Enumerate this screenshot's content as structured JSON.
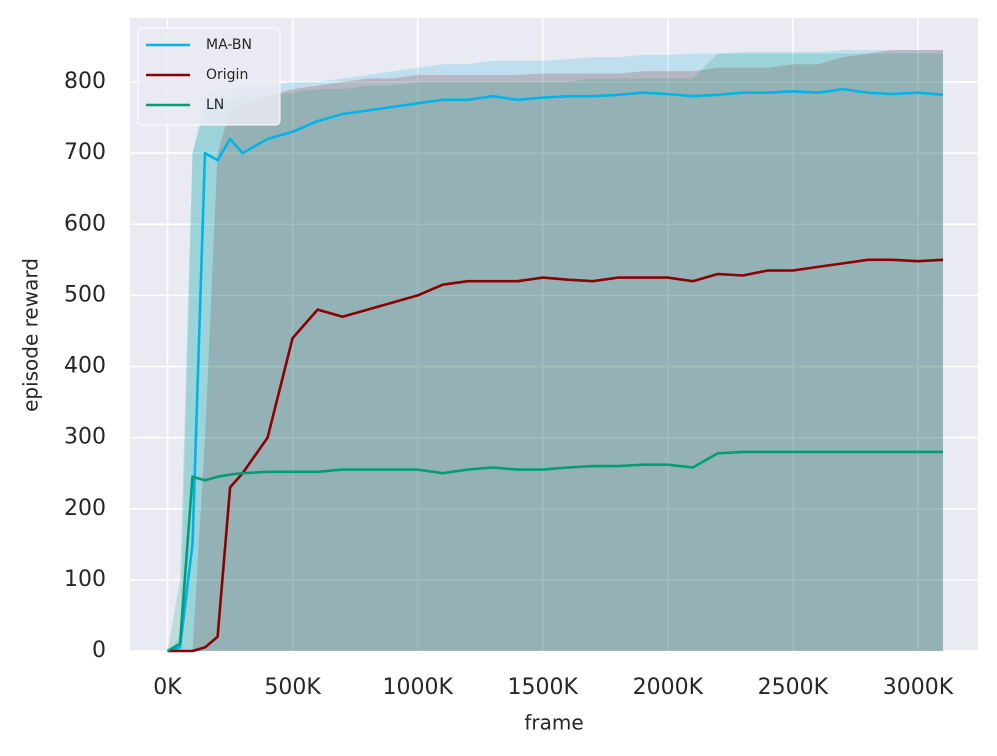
{
  "chart_data": {
    "type": "line",
    "x_label": "frame",
    "y_label": "episode reward",
    "xlim": [
      -150000,
      3240000
    ],
    "ylim": [
      0,
      890
    ],
    "xticks": [
      {
        "value": 0,
        "label": "0K"
      },
      {
        "value": 500000,
        "label": "500K"
      },
      {
        "value": 1000000,
        "label": "1000K"
      },
      {
        "value": 1500000,
        "label": "1500K"
      },
      {
        "value": 2000000,
        "label": "2000K"
      },
      {
        "value": 2500000,
        "label": "2500K"
      },
      {
        "value": 3000000,
        "label": "3000K"
      }
    ],
    "yticks": [
      0,
      100,
      200,
      300,
      400,
      500,
      600,
      700,
      800
    ],
    "grid": true,
    "legend": "upper left",
    "x": [
      0,
      50000,
      100000,
      150000,
      200000,
      250000,
      300000,
      400000,
      500000,
      600000,
      700000,
      800000,
      900000,
      1000000,
      1100000,
      1200000,
      1300000,
      1400000,
      1500000,
      1600000,
      1700000,
      1800000,
      1900000,
      2000000,
      2100000,
      2200000,
      2300000,
      2400000,
      2500000,
      2600000,
      2700000,
      2800000,
      2900000,
      3000000,
      3100000
    ],
    "series": [
      {
        "name": "MA-BN",
        "color": "#00b4e6",
        "values": [
          0,
          5,
          150,
          700,
          690,
          720,
          700,
          720,
          730,
          745,
          755,
          760,
          765,
          770,
          775,
          775,
          780,
          775,
          778,
          780,
          780,
          782,
          785,
          783,
          780,
          782,
          785,
          785,
          787,
          785,
          790,
          785,
          783,
          785,
          782
        ],
        "band_upper": [
          0,
          20,
          700,
          780,
          790,
          790,
          795,
          795,
          800,
          800,
          805,
          810,
          815,
          820,
          825,
          825,
          830,
          830,
          830,
          832,
          835,
          835,
          838,
          838,
          840,
          840,
          842,
          842,
          842,
          842,
          845,
          845,
          845,
          845,
          845
        ],
        "band_lower": [
          0,
          0,
          0,
          0,
          0,
          0,
          0,
          0,
          0,
          0,
          0,
          0,
          0,
          0,
          0,
          0,
          0,
          0,
          0,
          0,
          0,
          0,
          0,
          0,
          0,
          0,
          0,
          0,
          0,
          0,
          0,
          0,
          0,
          0,
          0
        ]
      },
      {
        "name": "Origin",
        "color": "#8b0000",
        "values": [
          0,
          0,
          0,
          5,
          20,
          230,
          250,
          300,
          440,
          480,
          470,
          480,
          490,
          500,
          515,
          520,
          520,
          520,
          525,
          522,
          520,
          525,
          525,
          525,
          520,
          530,
          528,
          535,
          535,
          540,
          545,
          550,
          550,
          548,
          550
        ],
        "band_upper": [
          0,
          0,
          0,
          300,
          700,
          760,
          770,
          780,
          790,
          795,
          800,
          805,
          805,
          810,
          810,
          810,
          810,
          810,
          812,
          812,
          812,
          812,
          815,
          815,
          815,
          820,
          820,
          820,
          825,
          825,
          835,
          840,
          845,
          845,
          845
        ],
        "band_lower": [
          0,
          0,
          0,
          0,
          0,
          0,
          0,
          0,
          0,
          0,
          0,
          0,
          0,
          0,
          0,
          0,
          0,
          0,
          0,
          0,
          0,
          0,
          0,
          0,
          0,
          0,
          0,
          0,
          0,
          0,
          0,
          0,
          0,
          0,
          0
        ]
      },
      {
        "name": "LN",
        "color": "#009e73",
        "values": [
          0,
          10,
          245,
          240,
          245,
          248,
          250,
          252,
          252,
          252,
          255,
          255,
          255,
          255,
          250,
          255,
          258,
          255,
          255,
          258,
          260,
          260,
          262,
          262,
          258,
          278,
          280,
          280,
          280,
          280,
          280,
          280,
          280,
          280,
          280
        ],
        "band_upper": [
          0,
          100,
          700,
          760,
          770,
          775,
          780,
          780,
          785,
          790,
          790,
          795,
          795,
          800,
          800,
          800,
          800,
          800,
          800,
          800,
          805,
          805,
          805,
          805,
          805,
          840,
          840,
          840,
          840,
          840,
          840,
          840,
          840,
          840,
          840
        ],
        "band_lower": [
          0,
          0,
          0,
          0,
          0,
          0,
          0,
          0,
          0,
          0,
          0,
          0,
          0,
          0,
          0,
          0,
          0,
          0,
          0,
          0,
          0,
          0,
          0,
          0,
          0,
          0,
          0,
          0,
          0,
          0,
          0,
          0,
          0,
          0,
          0
        ]
      }
    ]
  }
}
